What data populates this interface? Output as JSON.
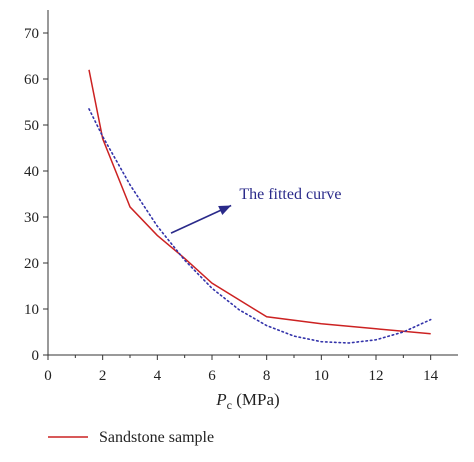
{
  "chart_data": {
    "type": "line",
    "title": "",
    "xlabel_base": "P",
    "xlabel_sub": "c",
    "xlabel_unit": " (MPa)",
    "ylabel": "",
    "xlim": [
      0,
      15
    ],
    "ylim": [
      0,
      75
    ],
    "xticks": [
      0,
      2,
      4,
      6,
      8,
      10,
      12,
      14
    ],
    "yticks": [
      0,
      10,
      20,
      30,
      40,
      50,
      60,
      70
    ],
    "grid": false,
    "legend_position": "bottom-left",
    "series": [
      {
        "name": "Sandstone sample",
        "style": "solid",
        "color": "#cc2222",
        "x": [
          1.5,
          2,
          3,
          4,
          5,
          6,
          8,
          10,
          12,
          14
        ],
        "y": [
          62,
          47,
          32.2,
          26,
          21,
          15.6,
          8.3,
          6.8,
          5.7,
          4.6
        ]
      },
      {
        "name": "",
        "style": "dotted",
        "color": "#3333aa",
        "x": [
          1.5,
          2,
          3,
          4,
          5,
          6,
          7,
          8,
          9,
          10,
          11,
          12,
          13,
          14
        ],
        "y": [
          53.5,
          47.5,
          37,
          28,
          20.6,
          14.5,
          9.8,
          6.4,
          4.1,
          2.9,
          2.6,
          3.3,
          5,
          7.7
        ]
      }
    ],
    "annotation": {
      "text": "The fitted curve",
      "color": "#2a2a8a",
      "arrow_from": [
        4.5,
        26.5
      ],
      "arrow_to": [
        6.7,
        32.5
      ],
      "text_at": [
        7.0,
        35.0
      ]
    }
  }
}
